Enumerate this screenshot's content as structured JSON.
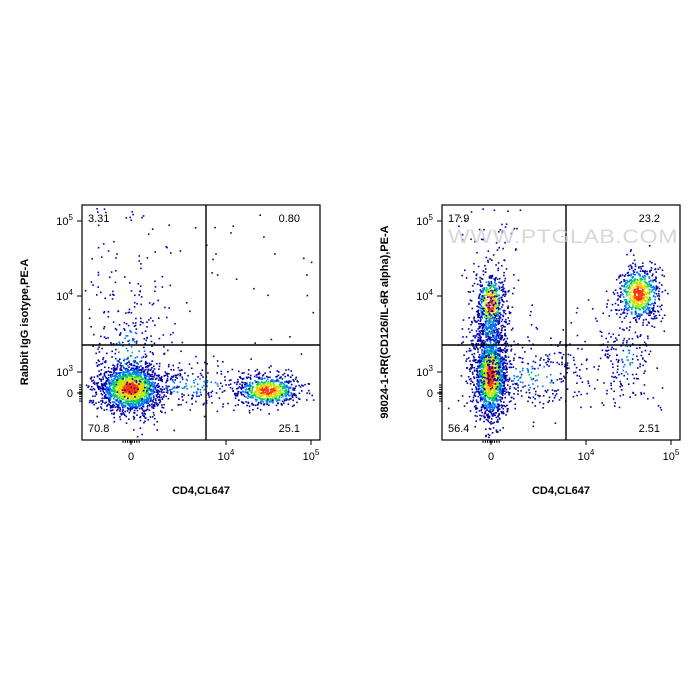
{
  "chart_data": [
    {
      "type": "scatter",
      "title": "",
      "xlabel": "CD4,CL647",
      "ylabel": "Rabbit IgG isotype,PE-A",
      "x_scale": "biexponential",
      "y_scale": "biexponential",
      "x_tick_labels": [
        "0",
        "10^4",
        "10^5"
      ],
      "y_tick_labels": [
        "0",
        "10^3",
        "10^4",
        "10^5"
      ],
      "quadrants": {
        "upper_left": "3.31",
        "upper_right": "0.80",
        "lower_left": "70.8",
        "lower_right": "25.1"
      },
      "populations": [
        {
          "quadrant": "lower_left",
          "percent": 70.8
        },
        {
          "quadrant": "lower_right",
          "percent": 25.1
        },
        {
          "quadrant": "upper_left",
          "percent": 3.31
        },
        {
          "quadrant": "upper_right",
          "percent": 0.8
        }
      ],
      "color_scale": [
        "#0000aa",
        "#0077ff",
        "#00cc66",
        "#aaee00",
        "#ffcc00",
        "#ff3300"
      ]
    },
    {
      "type": "scatter",
      "title": "",
      "xlabel": "CD4,CL647",
      "ylabel": "98024-1-RR(CD126/IL-6R alpha),PE-A",
      "x_scale": "biexponential",
      "y_scale": "biexponential",
      "x_tick_labels": [
        "0",
        "10^4",
        "10^5"
      ],
      "y_tick_labels": [
        "0",
        "10^3",
        "10^4",
        "10^5"
      ],
      "quadrants": {
        "upper_left": "17.9",
        "upper_right": "23.2",
        "lower_left": "56.4",
        "lower_right": "2.51"
      },
      "populations": [
        {
          "quadrant": "lower_left",
          "percent": 56.4
        },
        {
          "quadrant": "upper_left",
          "percent": 17.9
        },
        {
          "quadrant": "upper_right",
          "percent": 23.2
        },
        {
          "quadrant": "lower_right",
          "percent": 2.51
        }
      ],
      "color_scale": [
        "#0000aa",
        "#0077ff",
        "#00cc66",
        "#aaee00",
        "#ffcc00",
        "#ff3300"
      ]
    }
  ],
  "watermark": "WWW.PTGLAB.COM"
}
